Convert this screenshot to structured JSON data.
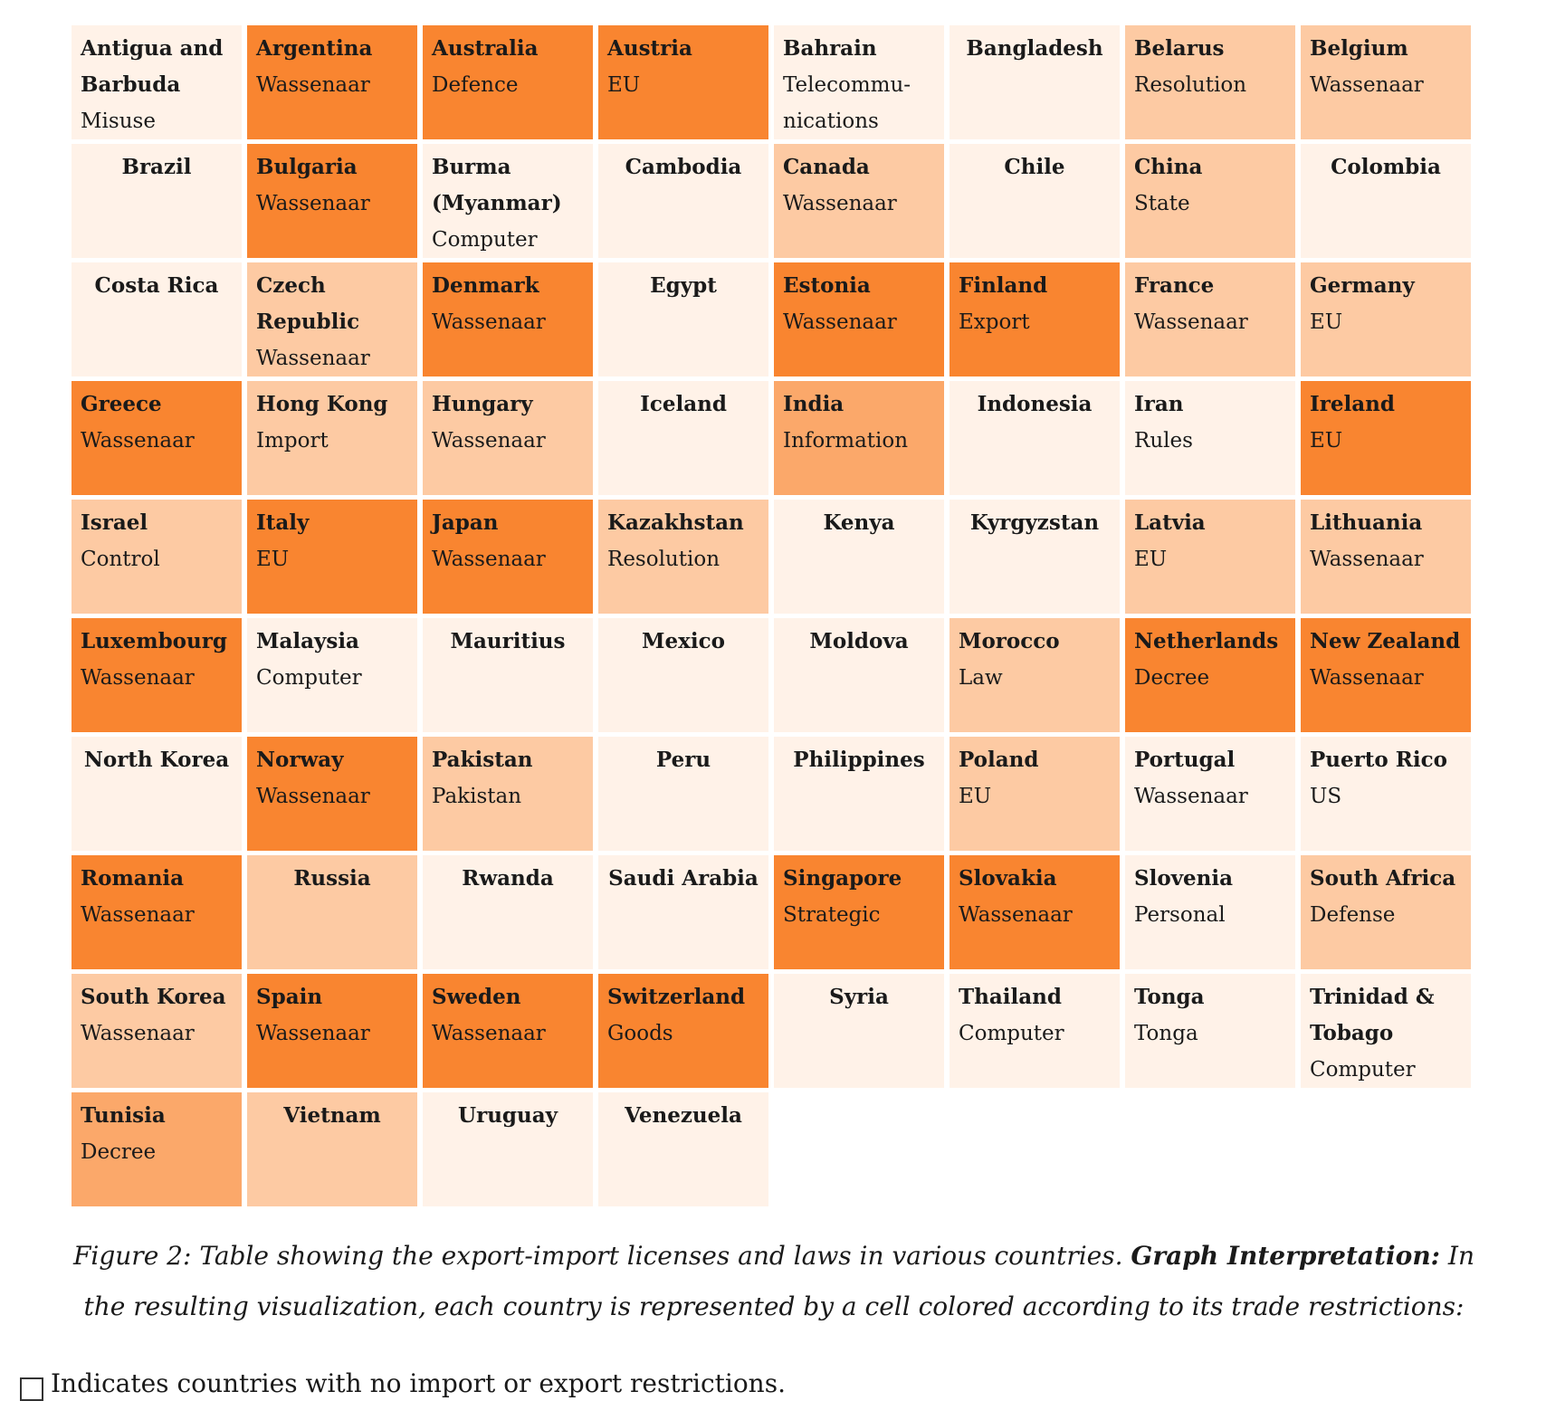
{
  "colors": {
    "lvl0": "#fff2e8",
    "lvl1": "#fdcaa3",
    "lvl2": "#fba86a",
    "lvl3": "#f98530"
  },
  "cells": [
    {
      "country": "Antigua and Barbuda",
      "law": "Misuse",
      "level": 0,
      "align": "left"
    },
    {
      "country": "Argentina",
      "law": "Wassenaar",
      "level": 3,
      "align": "left"
    },
    {
      "country": "Australia",
      "law": "Defence",
      "level": 3,
      "align": "left"
    },
    {
      "country": "Austria",
      "law": "EU",
      "level": 3,
      "align": "left"
    },
    {
      "country": "Bahrain",
      "law": "Telecommu- nications",
      "level": 0,
      "align": "left"
    },
    {
      "country": "Bangladesh",
      "law": "",
      "level": 0,
      "align": "center"
    },
    {
      "country": "Belarus",
      "law": "Resolution",
      "level": 1,
      "align": "left"
    },
    {
      "country": "Belgium",
      "law": "Wassenaar",
      "level": 1,
      "align": "left"
    },
    {
      "country": "Brazil",
      "law": "",
      "level": 0,
      "align": "center"
    },
    {
      "country": "Bulgaria",
      "law": "Wassenaar",
      "level": 3,
      "align": "left"
    },
    {
      "country": "Burma (Myanmar)",
      "law": "Computer",
      "level": 0,
      "align": "left"
    },
    {
      "country": "Cambodia",
      "law": "",
      "level": 0,
      "align": "center"
    },
    {
      "country": "Canada",
      "law": "Wassenaar",
      "level": 1,
      "align": "left"
    },
    {
      "country": "Chile",
      "law": "",
      "level": 0,
      "align": "center"
    },
    {
      "country": "China",
      "law": "State",
      "level": 1,
      "align": "left"
    },
    {
      "country": "Colombia",
      "law": "",
      "level": 0,
      "align": "center"
    },
    {
      "country": "Costa Rica",
      "law": "",
      "level": 0,
      "align": "center"
    },
    {
      "country": "Czech Republic",
      "law": "Wassenaar",
      "level": 1,
      "align": "left"
    },
    {
      "country": "Denmark",
      "law": "Wassenaar",
      "level": 3,
      "align": "left"
    },
    {
      "country": "Egypt",
      "law": "",
      "level": 0,
      "align": "center"
    },
    {
      "country": "Estonia",
      "law": "Wassenaar",
      "level": 3,
      "align": "left"
    },
    {
      "country": "Finland",
      "law": "Export",
      "level": 3,
      "align": "left"
    },
    {
      "country": "France",
      "law": "Wassenaar",
      "level": 1,
      "align": "left"
    },
    {
      "country": "Germany",
      "law": "EU",
      "level": 1,
      "align": "left"
    },
    {
      "country": "Greece",
      "law": "Wassenaar",
      "level": 3,
      "align": "left"
    },
    {
      "country": "Hong Kong",
      "law": "Import",
      "level": 1,
      "align": "left"
    },
    {
      "country": "Hungary",
      "law": "Wassenaar",
      "level": 1,
      "align": "left"
    },
    {
      "country": "Iceland",
      "law": "",
      "level": 0,
      "align": "center"
    },
    {
      "country": "India",
      "law": "Information",
      "level": 2,
      "align": "left"
    },
    {
      "country": "Indonesia",
      "law": "",
      "level": 0,
      "align": "center"
    },
    {
      "country": "Iran",
      "law": "Rules",
      "level": 0,
      "align": "left"
    },
    {
      "country": "Ireland",
      "law": "EU",
      "level": 3,
      "align": "left"
    },
    {
      "country": "Israel",
      "law": "Control",
      "level": 1,
      "align": "left"
    },
    {
      "country": "Italy",
      "law": "EU",
      "level": 3,
      "align": "left"
    },
    {
      "country": "Japan",
      "law": "Wassenaar",
      "level": 3,
      "align": "left"
    },
    {
      "country": "Kazakhstan",
      "law": "Resolution",
      "level": 1,
      "align": "left"
    },
    {
      "country": "Kenya",
      "law": "",
      "level": 0,
      "align": "center"
    },
    {
      "country": "Kyrgyzstan",
      "law": "",
      "level": 0,
      "align": "center"
    },
    {
      "country": "Latvia",
      "law": "EU",
      "level": 1,
      "align": "left"
    },
    {
      "country": "Lithuania",
      "law": "Wassenaar",
      "level": 1,
      "align": "left"
    },
    {
      "country": "Luxembourg",
      "law": "Wassenaar",
      "level": 3,
      "align": "left"
    },
    {
      "country": "Malaysia",
      "law": "Computer",
      "level": 0,
      "align": "left"
    },
    {
      "country": "Mauritius",
      "law": "",
      "level": 0,
      "align": "center"
    },
    {
      "country": "Mexico",
      "law": "",
      "level": 0,
      "align": "center"
    },
    {
      "country": "Moldova",
      "law": "",
      "level": 0,
      "align": "center"
    },
    {
      "country": "Morocco",
      "law": "Law",
      "level": 1,
      "align": "left"
    },
    {
      "country": "Netherlands",
      "law": "Decree",
      "level": 3,
      "align": "left"
    },
    {
      "country": "New Zealand",
      "law": "Wassenaar",
      "level": 3,
      "align": "left"
    },
    {
      "country": "North Korea",
      "law": "",
      "level": 0,
      "align": "center"
    },
    {
      "country": "Norway",
      "law": "Wassenaar",
      "level": 3,
      "align": "left"
    },
    {
      "country": "Pakistan",
      "law": "Pakistan",
      "level": 1,
      "align": "left"
    },
    {
      "country": "Peru",
      "law": "",
      "level": 0,
      "align": "center"
    },
    {
      "country": "Philippines",
      "law": "",
      "level": 0,
      "align": "center"
    },
    {
      "country": "Poland",
      "law": "EU",
      "level": 1,
      "align": "left"
    },
    {
      "country": "Portugal",
      "law": "Wassenaar",
      "level": 0,
      "align": "left"
    },
    {
      "country": "Puerto Rico",
      "law": "US",
      "level": 0,
      "align": "left"
    },
    {
      "country": "Romania",
      "law": "Wassenaar",
      "level": 3,
      "align": "left"
    },
    {
      "country": "Russia",
      "law": "",
      "level": 1,
      "align": "center"
    },
    {
      "country": "Rwanda",
      "law": "",
      "level": 0,
      "align": "center"
    },
    {
      "country": "Saudi Arabia",
      "law": "",
      "level": 0,
      "align": "center"
    },
    {
      "country": "Singapore",
      "law": "Strategic",
      "level": 3,
      "align": "left"
    },
    {
      "country": "Slovakia",
      "law": "Wassenaar",
      "level": 3,
      "align": "left"
    },
    {
      "country": "Slovenia",
      "law": "Personal",
      "level": 0,
      "align": "left"
    },
    {
      "country": "South Africa",
      "law": "Defense",
      "level": 1,
      "align": "left"
    },
    {
      "country": "South Korea",
      "law": "Wassenaar",
      "level": 1,
      "align": "left"
    },
    {
      "country": "Spain",
      "law": "Wassenaar",
      "level": 3,
      "align": "left"
    },
    {
      "country": "Sweden",
      "law": "Wassenaar",
      "level": 3,
      "align": "left"
    },
    {
      "country": "Switzerland",
      "law": "Goods",
      "level": 3,
      "align": "left"
    },
    {
      "country": "Syria",
      "law": "",
      "level": 0,
      "align": "center"
    },
    {
      "country": "Thailand",
      "law": "Computer",
      "level": 0,
      "align": "left"
    },
    {
      "country": "Tonga",
      "law": "Tonga",
      "level": 0,
      "align": "left"
    },
    {
      "country": "Trinidad & Tobago",
      "law": "Computer",
      "level": 0,
      "align": "left"
    },
    {
      "country": "Tunisia",
      "law": "Decree",
      "level": 2,
      "align": "left"
    },
    {
      "country": "Vietnam",
      "law": "",
      "level": 1,
      "align": "center"
    },
    {
      "country": "Uruguay",
      "law": "",
      "level": 0,
      "align": "center"
    },
    {
      "country": "Venezuela",
      "law": "",
      "level": 0,
      "align": "center"
    }
  ],
  "caption": {
    "prefix": "Figure 2:  Table showing the export-import licenses and laws in various countries. ",
    "bold": "Graph Interpretation:",
    "suffix": " In the resulting visualization, each country is represented by a cell colored according to its trade restrictions:"
  },
  "bullet_text": "Indicates countries with no import or export restrictions."
}
